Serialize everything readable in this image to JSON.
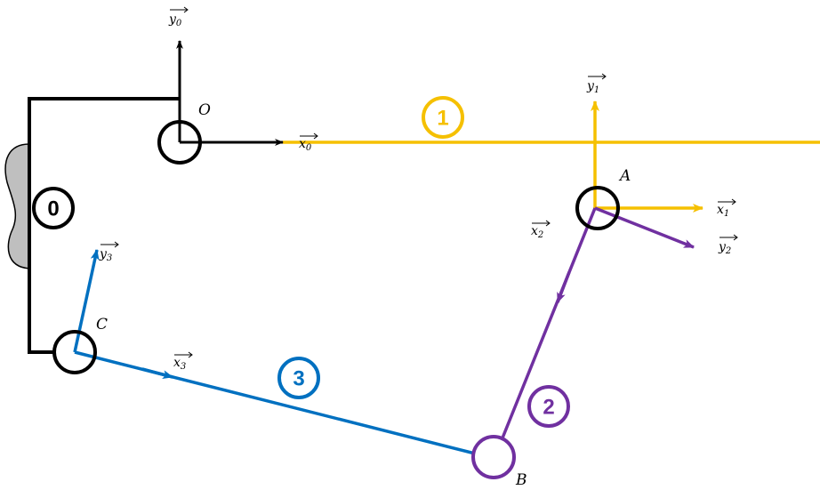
{
  "points": {
    "O": "O",
    "A": "A",
    "B": "B",
    "C": "C"
  },
  "vectors": {
    "x0": {
      "base": "x",
      "sub": "0"
    },
    "y0": {
      "base": "y",
      "sub": "0"
    },
    "x1": {
      "base": "x",
      "sub": "1"
    },
    "y1": {
      "base": "y",
      "sub": "1"
    },
    "x2": {
      "base": "x",
      "sub": "2"
    },
    "y2": {
      "base": "y",
      "sub": "2"
    },
    "x3": {
      "base": "x",
      "sub": "3"
    },
    "y3": {
      "base": "y",
      "sub": "3"
    }
  },
  "bodies": {
    "b0": "0",
    "b1": "1",
    "b2": "2",
    "b3": "3"
  },
  "colors": {
    "frame": "#000000",
    "body1": "#F5C000",
    "body2": "#7030A0",
    "body3": "#0070C0",
    "ground": "#BFBFBF"
  }
}
